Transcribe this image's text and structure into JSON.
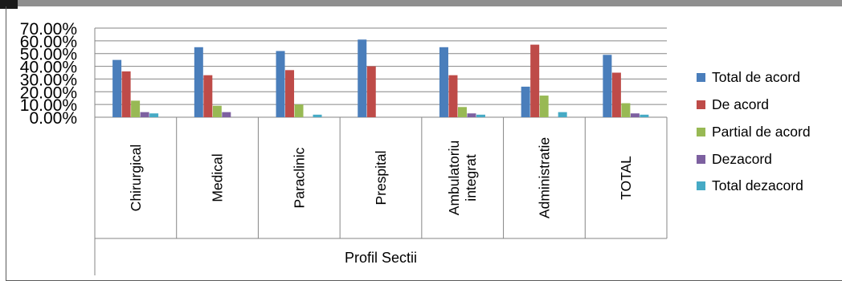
{
  "chart_data": {
    "type": "bar",
    "xlabel": "Profil Sectii",
    "ylabel": "",
    "ylim": [
      0,
      70
    ],
    "yticks": [
      "0.00%",
      "10.00%",
      "20.00%",
      "30.00%",
      "40.00%",
      "50.00%",
      "60.00%",
      "70.00%"
    ],
    "grid": true,
    "legend_position": "right",
    "categories": [
      "Chirurgical",
      "Medical",
      "Paraclinic",
      "Prespital",
      "Ambulatoriu integrat",
      "Administratie",
      "TOTAL"
    ],
    "category_lines": [
      [
        "Chirurgical"
      ],
      [
        "Medical"
      ],
      [
        "Paraclinic"
      ],
      [
        "Prespital"
      ],
      [
        "Ambulatoriu",
        "integrat"
      ],
      [
        "Administratie"
      ],
      [
        "TOTAL"
      ]
    ],
    "series": [
      {
        "name": "Total de acord",
        "color": "#4a7ebb",
        "values": [
          45,
          55,
          52,
          61,
          55,
          24,
          49
        ]
      },
      {
        "name": "De acord",
        "color": "#be4b48",
        "values": [
          36,
          33,
          37,
          40,
          33,
          57,
          35
        ]
      },
      {
        "name": "Partial de acord",
        "color": "#98b954",
        "values": [
          13,
          9,
          10,
          0,
          8,
          17,
          11
        ]
      },
      {
        "name": "Dezacord",
        "color": "#7d60a0",
        "values": [
          4,
          4,
          0,
          0,
          3,
          0,
          3
        ]
      },
      {
        "name": "Total dezacord",
        "color": "#46aac5",
        "values": [
          3,
          0,
          2,
          0,
          2,
          4,
          2
        ]
      }
    ]
  }
}
